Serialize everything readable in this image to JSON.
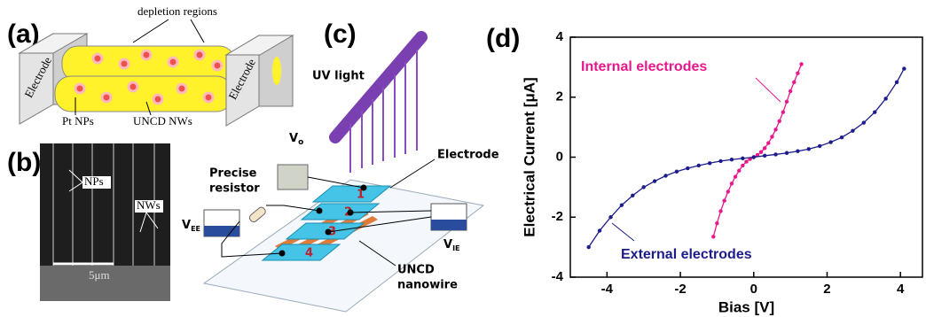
{
  "panels": {
    "a": {
      "label": "(a)",
      "electrode_left": "Electrode",
      "electrode_right": "Electrode",
      "depletion": "depletion regions",
      "pt": "Pt NPs",
      "nws": "UNCD NWs"
    },
    "b": {
      "label": "(b)",
      "nps": "NPs",
      "nws": "NWs",
      "scale": "5μm"
    },
    "c": {
      "label": "(c)",
      "uv": "UV light",
      "electrode": "Electrode",
      "resistor": [
        "Precise",
        "resistor"
      ],
      "v0": {
        "main": "V",
        "sub": "o"
      },
      "vee": {
        "main": "V",
        "sub": "EE"
      },
      "vie": {
        "main": "V",
        "sub": "IE"
      },
      "numbers": [
        "1",
        "2",
        "3",
        "4"
      ],
      "nanowire": [
        "UNCD",
        "nanowire"
      ]
    },
    "d": {
      "label": "(d)"
    }
  },
  "chart_data": {
    "type": "line",
    "x_label": "Bias [V]",
    "y_label": "Electrical Current [μA]",
    "xlim": [
      -5,
      4.6
    ],
    "xticks": [
      -4,
      -2,
      0,
      2,
      4
    ],
    "ylim": [
      -4,
      4
    ],
    "yticks": [
      -4,
      -2,
      0,
      2,
      4
    ],
    "series": [
      {
        "name": "Internal electrodes",
        "color": "#e8188c",
        "x": [
          -1.1,
          -1.0,
          -0.9,
          -0.8,
          -0.7,
          -0.6,
          -0.5,
          -0.4,
          -0.3,
          -0.2,
          -0.1,
          0,
          0.1,
          0.2,
          0.3,
          0.4,
          0.5,
          0.6,
          0.7,
          0.8,
          0.9,
          1.0,
          1.1,
          1.2,
          1.3
        ],
        "values": [
          -2.65,
          -2.2,
          -1.8,
          -1.45,
          -1.15,
          -0.88,
          -0.65,
          -0.45,
          -0.28,
          -0.15,
          -0.06,
          0,
          0.07,
          0.17,
          0.3,
          0.47,
          0.68,
          0.92,
          1.2,
          1.5,
          1.85,
          2.2,
          2.5,
          2.8,
          3.1
        ]
      },
      {
        "name": "External electrodes",
        "color": "#1c1c8c",
        "x": [
          -4.5,
          -4.2,
          -3.9,
          -3.6,
          -3.3,
          -3.0,
          -2.7,
          -2.4,
          -2.1,
          -1.8,
          -1.5,
          -1.2,
          -0.9,
          -0.6,
          -0.3,
          0,
          0.3,
          0.6,
          0.9,
          1.2,
          1.5,
          1.8,
          2.1,
          2.4,
          2.7,
          3.0,
          3.3,
          3.6,
          3.9,
          4.1
        ],
        "values": [
          -3.0,
          -2.45,
          -2.0,
          -1.6,
          -1.28,
          -1.0,
          -0.8,
          -0.62,
          -0.48,
          -0.37,
          -0.28,
          -0.2,
          -0.13,
          -0.08,
          -0.04,
          0,
          0.05,
          0.09,
          0.14,
          0.2,
          0.27,
          0.37,
          0.5,
          0.66,
          0.88,
          1.15,
          1.5,
          1.95,
          2.5,
          2.95
        ]
      }
    ]
  }
}
